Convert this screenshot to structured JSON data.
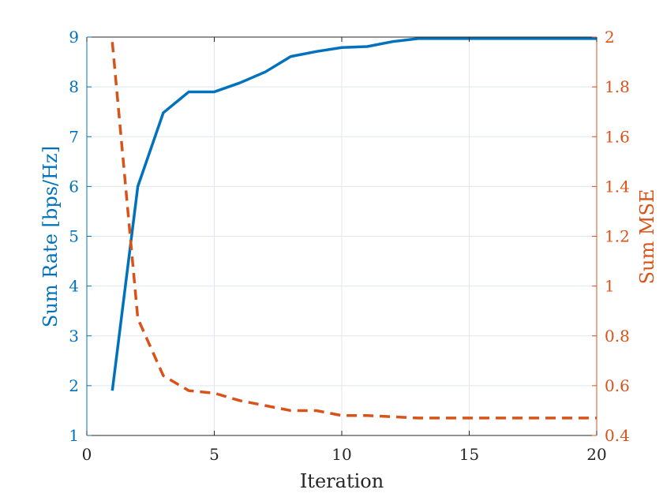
{
  "chart_data": {
    "type": "line",
    "title": "",
    "xlabel": "Iteration",
    "ylabel_left": "Sum Rate [bps/Hz]",
    "ylabel_right": "Sum MSE",
    "xlim": [
      0,
      20
    ],
    "ylim_left": [
      1,
      9
    ],
    "ylim_right": [
      0.4,
      2
    ],
    "grid": true,
    "x_ticks": [
      "0",
      "5",
      "10",
      "15",
      "20"
    ],
    "y_left_ticks": [
      "1",
      "2",
      "3",
      "4",
      "5",
      "6",
      "7",
      "8",
      "9"
    ],
    "y_right_ticks": [
      "0.4",
      "0.6",
      "0.8",
      "1",
      "1.2",
      "1.4",
      "1.6",
      "1.8",
      "2"
    ],
    "colors": {
      "left": "#0072BD",
      "right": "#D95319",
      "grid": "#dfe7ee",
      "text": "#262626"
    },
    "series": [
      {
        "axis": "left",
        "style": "solid",
        "x": [
          1,
          2,
          3,
          4,
          5,
          6,
          7,
          8,
          9,
          10,
          11,
          12,
          13,
          14,
          15,
          16,
          17,
          18,
          19,
          20
        ],
        "values": [
          1.9,
          6.0,
          7.48,
          7.9,
          7.9,
          8.08,
          8.3,
          8.61,
          8.71,
          8.79,
          8.81,
          8.91,
          8.97,
          8.97,
          8.97,
          8.97,
          8.97,
          8.97,
          8.97,
          8.97
        ]
      },
      {
        "axis": "right",
        "style": "dashed",
        "x": [
          1,
          2,
          3,
          4,
          5,
          6,
          7,
          8,
          9,
          10,
          11,
          12,
          13,
          14,
          15,
          16,
          17,
          18,
          19,
          20
        ],
        "values": [
          1.98,
          0.87,
          0.64,
          0.58,
          0.57,
          0.54,
          0.52,
          0.5,
          0.5,
          0.48,
          0.48,
          0.475,
          0.47,
          0.47,
          0.47,
          0.47,
          0.47,
          0.47,
          0.47,
          0.47
        ]
      }
    ]
  }
}
